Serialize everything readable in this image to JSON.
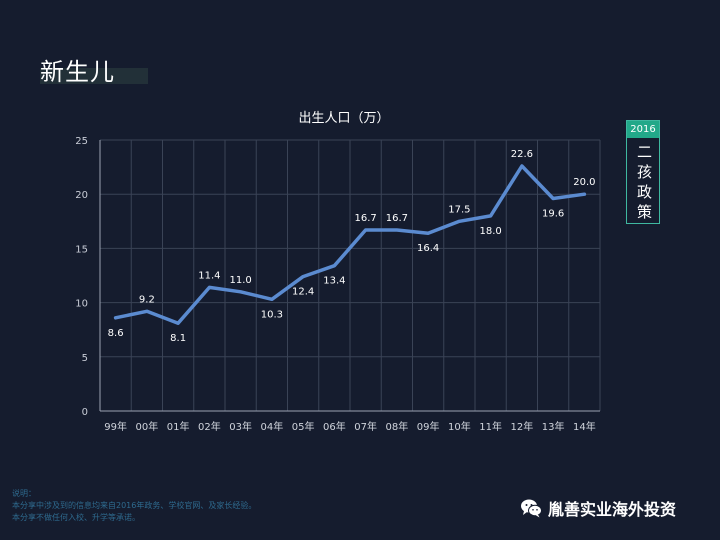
{
  "slide": {
    "title": "新生儿"
  },
  "policy": {
    "year": "2016",
    "label": "二孩政策",
    "border_color": "#3fb8a0",
    "header_color": "#22a889"
  },
  "footnote": {
    "line1": "说明：",
    "line2": "本分享中涉及到的信息均来自2016年政务、学校官网、及家长经验。",
    "line3": "本分享不做任何入校、升学等承诺。"
  },
  "brand": {
    "name": "胤善实业海外投资",
    "icon": "wechat-icon"
  },
  "chart_data": {
    "type": "line",
    "title": "出生人口（万）",
    "categories": [
      "99年",
      "00年",
      "01年",
      "02年",
      "03年",
      "04年",
      "05年",
      "06年",
      "07年",
      "08年",
      "09年",
      "10年",
      "11年",
      "12年",
      "13年",
      "14年"
    ],
    "series": [
      {
        "values": [
          8.6,
          9.2,
          8.1,
          11.4,
          11.0,
          10.3,
          12.4,
          13.4,
          16.7,
          16.7,
          16.4,
          17.5,
          18.0,
          22.6,
          19.6,
          20.0
        ],
        "labels": [
          "8.6",
          "9.2",
          "8.1",
          "11.4",
          "11.0",
          "10.3",
          "12.4",
          "13.4",
          "16.7",
          "16.7",
          "16.4",
          "17.5",
          "18.0",
          "22.6",
          "19.6",
          "20.0"
        ],
        "color": "#5b8bd0"
      }
    ],
    "ylim": [
      0,
      25
    ],
    "yticks": [
      "0",
      "5",
      "10",
      "15",
      "20",
      "25"
    ],
    "grid": true,
    "label_positions": [
      "below",
      "above",
      "below",
      "above",
      "above",
      "below",
      "below",
      "below",
      "above",
      "above",
      "below",
      "above",
      "below",
      "above",
      "below",
      "above"
    ]
  }
}
